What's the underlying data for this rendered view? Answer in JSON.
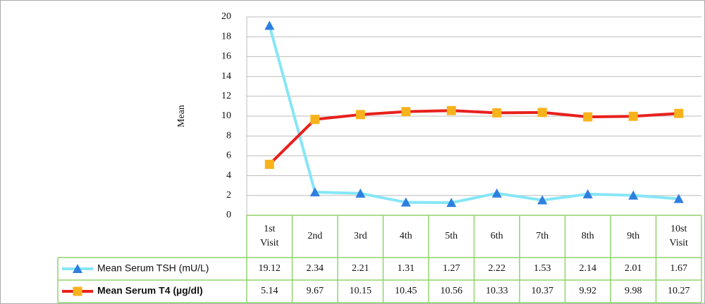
{
  "chart_data": {
    "type": "line",
    "y_label": "Mean",
    "categories": [
      "1st Visit",
      "2nd",
      "3rd",
      "4th",
      "5th",
      "6th",
      "7th",
      "8th",
      "9th",
      "10st Visit"
    ],
    "series": [
      {
        "name": "Mean Serum TSH (mU/L)",
        "color": "#86e6f6",
        "marker_color": "#2f7fe0",
        "marker": "triangle",
        "values": [
          19.12,
          2.34,
          2.21,
          1.31,
          1.27,
          2.22,
          1.53,
          2.14,
          2.01,
          1.67
        ]
      },
      {
        "name": "Mean Serum T4 (µg/dl)",
        "color": "#e8201c",
        "marker_color": "#f8b21c",
        "marker": "square",
        "values": [
          5.14,
          9.67,
          10.15,
          10.45,
          10.56,
          10.33,
          10.37,
          9.92,
          9.98,
          10.27
        ]
      }
    ],
    "ylim": [
      0,
      20
    ],
    "yticks": [
      0,
      2,
      4,
      6,
      8,
      10,
      12,
      14,
      16,
      18,
      20
    ],
    "grid": true
  }
}
